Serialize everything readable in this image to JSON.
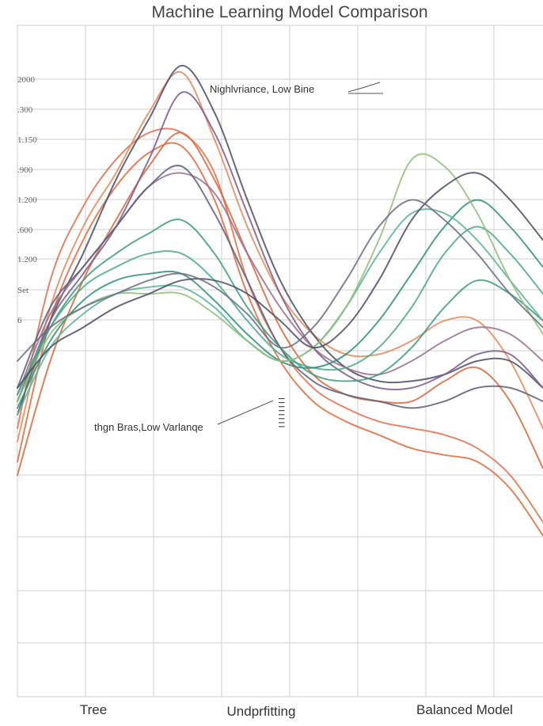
{
  "chart_data": {
    "type": "line",
    "title": "Machine Learning Model Comparison",
    "categories": [
      "Tree",
      "Undprfitting",
      "Balanced Model"
    ],
    "y_tick_labels": [
      "2000",
      ".300",
      "1.150",
      ".900",
      "1.200",
      ".600",
      "1.200",
      "Set",
      "6"
    ],
    "x": [
      0,
      0.5,
      1,
      1.5,
      2,
      2.5,
      3,
      3.5,
      4,
      4.5,
      5,
      5.5,
      6,
      6.5,
      7,
      7.5,
      8
    ],
    "xlim": [
      0,
      8
    ],
    "ylim": [
      0,
      1
    ],
    "grid": true,
    "annotations": [
      {
        "text": "Nighlvriance, Low Bine"
      },
      {
        "text": "thgn Bras,Low Varlanqe"
      },
      {
        "text": "IIIIIIII"
      }
    ],
    "series": [
      {
        "color": "#e2704a",
        "values": [
          0.4,
          0.62,
          0.73,
          0.8,
          0.84,
          0.84,
          0.78,
          0.62,
          0.52,
          0.46,
          0.43,
          0.41,
          0.4,
          0.39,
          0.37,
          0.33,
          0.26
        ]
      },
      {
        "color": "#e06a3e",
        "values": [
          0.35,
          0.56,
          0.68,
          0.76,
          0.81,
          0.82,
          0.74,
          0.6,
          0.5,
          0.44,
          0.41,
          0.39,
          0.37,
          0.36,
          0.35,
          0.31,
          0.24
        ]
      },
      {
        "color": "#d9683c",
        "values": [
          0.33,
          0.5,
          0.62,
          0.71,
          0.79,
          0.84,
          0.77,
          0.66,
          0.55,
          0.48,
          0.45,
          0.44,
          0.44,
          0.47,
          0.49,
          0.44,
          0.34
        ]
      },
      {
        "color": "#e48a5a",
        "values": [
          0.38,
          0.58,
          0.7,
          0.78,
          0.87,
          0.93,
          0.83,
          0.7,
          0.6,
          0.54,
          0.51,
          0.51,
          0.53,
          0.56,
          0.56,
          0.5,
          0.4
        ]
      },
      {
        "color": "#4a4d66",
        "values": [
          0.42,
          0.56,
          0.66,
          0.77,
          0.86,
          0.94,
          0.87,
          0.74,
          0.62,
          0.54,
          0.49,
          0.47,
          0.47,
          0.48,
          0.5,
          0.5,
          0.46
        ]
      },
      {
        "color": "#7d5a8c",
        "values": [
          0.44,
          0.56,
          0.63,
          0.7,
          0.8,
          0.9,
          0.84,
          0.72,
          0.6,
          0.52,
          0.48,
          0.46,
          0.46,
          0.48,
          0.51,
          0.51,
          0.46
        ]
      },
      {
        "color": "#9a6e8e",
        "values": [
          0.45,
          0.57,
          0.64,
          0.7,
          0.76,
          0.78,
          0.75,
          0.66,
          0.58,
          0.52,
          0.49,
          0.48,
          0.5,
          0.53,
          0.55,
          0.54,
          0.5
        ]
      },
      {
        "color": "#5e5e7a",
        "values": [
          0.46,
          0.58,
          0.64,
          0.7,
          0.76,
          0.79,
          0.72,
          0.62,
          0.52,
          0.47,
          0.45,
          0.44,
          0.43,
          0.44,
          0.46,
          0.46,
          0.44
        ]
      },
      {
        "color": "#3d9a82",
        "values": [
          0.44,
          0.55,
          0.62,
          0.66,
          0.69,
          0.71,
          0.66,
          0.58,
          0.52,
          0.48,
          0.47,
          0.48,
          0.52,
          0.58,
          0.62,
          0.6,
          0.56
        ]
      },
      {
        "color": "#4aa98c",
        "values": [
          0.45,
          0.55,
          0.61,
          0.64,
          0.66,
          0.66,
          0.62,
          0.56,
          0.51,
          0.49,
          0.49,
          0.52,
          0.58,
          0.66,
          0.7,
          0.66,
          0.6
        ]
      },
      {
        "color": "#2f8f7a",
        "values": [
          0.43,
          0.53,
          0.59,
          0.62,
          0.63,
          0.63,
          0.59,
          0.54,
          0.5,
          0.49,
          0.51,
          0.56,
          0.63,
          0.7,
          0.74,
          0.7,
          0.64
        ]
      },
      {
        "color": "#5bb399",
        "values": [
          0.42,
          0.52,
          0.57,
          0.6,
          0.61,
          0.61,
          0.58,
          0.53,
          0.5,
          0.52,
          0.58,
          0.66,
          0.72,
          0.72,
          0.68,
          0.62,
          0.56
        ]
      },
      {
        "color": "#8fc07a",
        "values": [
          0.44,
          0.54,
          0.58,
          0.6,
          0.6,
          0.6,
          0.57,
          0.53,
          0.5,
          0.52,
          0.58,
          0.68,
          0.8,
          0.79,
          0.72,
          0.62,
          0.54
        ]
      },
      {
        "color": "#4a4d66",
        "values": [
          0.46,
          0.52,
          0.55,
          0.58,
          0.6,
          0.62,
          0.62,
          0.6,
          0.56,
          0.52,
          0.55,
          0.62,
          0.71,
          0.76,
          0.78,
          0.74,
          0.68
        ]
      },
      {
        "color": "#6b6e86",
        "values": [
          0.5,
          0.55,
          0.58,
          0.6,
          0.62,
          0.63,
          0.61,
          0.57,
          0.52,
          0.55,
          0.62,
          0.7,
          0.74,
          0.71,
          0.66,
          0.6,
          0.55
        ]
      }
    ]
  }
}
